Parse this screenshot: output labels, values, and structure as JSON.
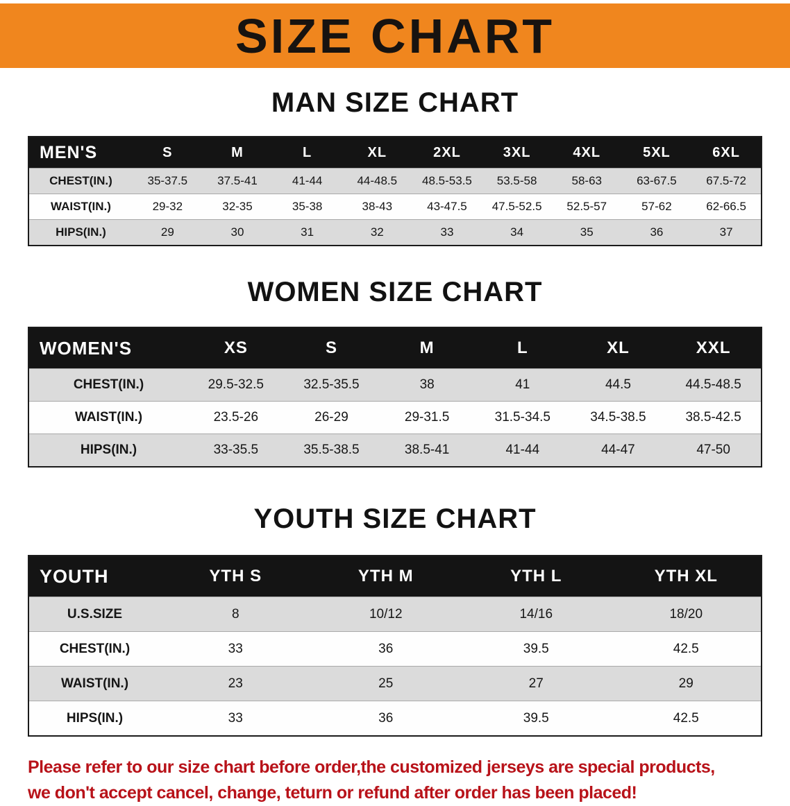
{
  "banner": {
    "title": "SIZE CHART"
  },
  "colors": {
    "banner-bg": "#F0861E",
    "header-bg": "#141414",
    "stripe": "#DBDBDB",
    "disclaimer": "#B81219"
  },
  "chart_data": [
    {
      "type": "table",
      "title": "MAN SIZE CHART",
      "corner": "MEN'S",
      "columns": [
        "S",
        "M",
        "L",
        "XL",
        "2XL",
        "3XL",
        "4XL",
        "5XL",
        "6XL"
      ],
      "rows": [
        {
          "label": "CHEST(IN.)",
          "values": [
            "35-37.5",
            "37.5-41",
            "41-44",
            "44-48.5",
            "48.5-53.5",
            "53.5-58",
            "58-63",
            "63-67.5",
            "67.5-72"
          ]
        },
        {
          "label": "WAIST(IN.)",
          "values": [
            "29-32",
            "32-35",
            "35-38",
            "38-43",
            "43-47.5",
            "47.5-52.5",
            "52.5-57",
            "57-62",
            "62-66.5"
          ]
        },
        {
          "label": "HIPS(IN.)",
          "values": [
            "29",
            "30",
            "31",
            "32",
            "33",
            "34",
            "35",
            "36",
            "37"
          ]
        }
      ]
    },
    {
      "type": "table",
      "title": "WOMEN SIZE CHART",
      "corner": "WOMEN'S",
      "columns": [
        "XS",
        "S",
        "M",
        "L",
        "XL",
        "XXL"
      ],
      "rows": [
        {
          "label": "CHEST(IN.)",
          "values": [
            "29.5-32.5",
            "32.5-35.5",
            "38",
            "41",
            "44.5",
            "44.5-48.5"
          ]
        },
        {
          "label": "WAIST(IN.)",
          "values": [
            "23.5-26",
            "26-29",
            "29-31.5",
            "31.5-34.5",
            "34.5-38.5",
            "38.5-42.5"
          ]
        },
        {
          "label": "HIPS(IN.)",
          "values": [
            "33-35.5",
            "35.5-38.5",
            "38.5-41",
            "41-44",
            "44-47",
            "47-50"
          ]
        }
      ]
    },
    {
      "type": "table",
      "title": "YOUTH SIZE CHART",
      "corner": "YOUTH",
      "columns": [
        "YTH S",
        "YTH M",
        "YTH L",
        "YTH XL"
      ],
      "rows": [
        {
          "label": "U.S.SIZE",
          "values": [
            "8",
            "10/12",
            "14/16",
            "18/20"
          ]
        },
        {
          "label": "CHEST(IN.)",
          "values": [
            "33",
            "36",
            "39.5",
            "42.5"
          ]
        },
        {
          "label": "WAIST(IN.)",
          "values": [
            "23",
            "25",
            "27",
            "29"
          ]
        },
        {
          "label": "HIPS(IN.)",
          "values": [
            "33",
            "36",
            "39.5",
            "42.5"
          ]
        }
      ]
    }
  ],
  "disclaimer": {
    "line1": "Please refer to our size chart before order,the customized jerseys are special products,",
    "line2": "we don't accept cancel, change, teturn or refund after order has been placed!"
  }
}
